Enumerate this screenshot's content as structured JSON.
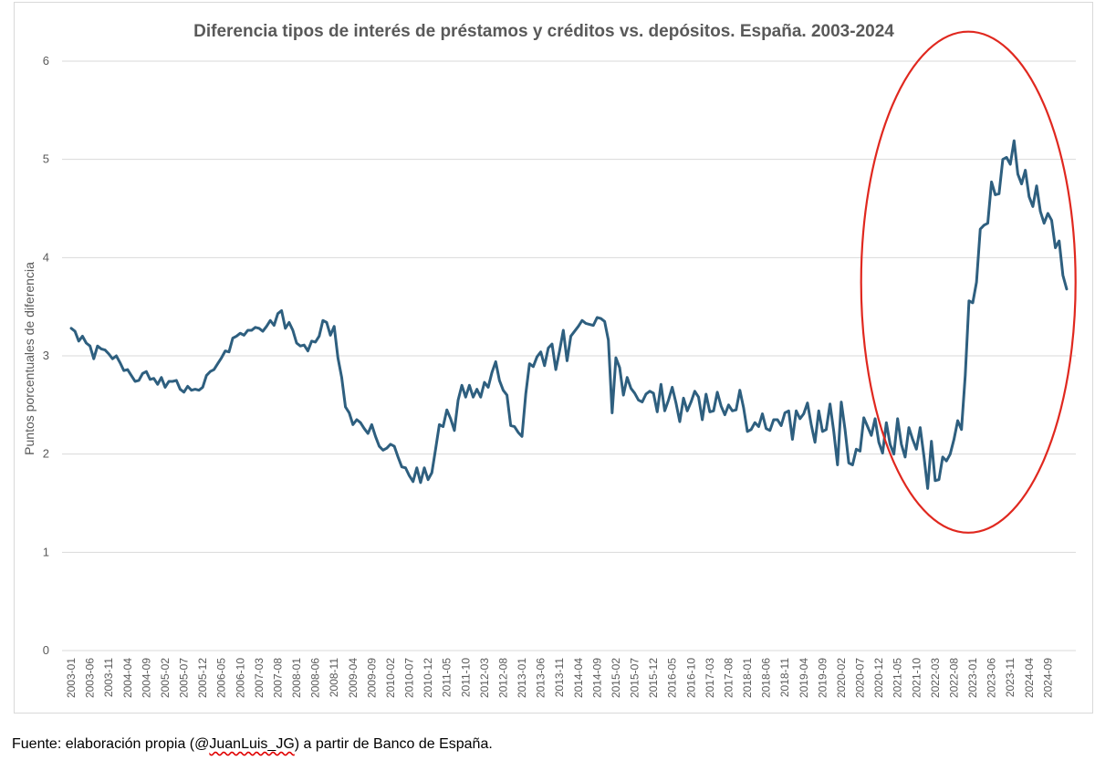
{
  "chart_data": {
    "type": "line",
    "title": "Diferencia tipos de interés de préstamos y créditos vs. depósitos. España. 2003-2024",
    "xlabel": "",
    "ylabel": "Puntos porcentuales de diferencia",
    "ylim": [
      0,
      6
    ],
    "yticks": [
      "0",
      "1",
      "2",
      "3",
      "4",
      "5",
      "6"
    ],
    "grid": true,
    "legend": "none",
    "x_tick_labels": [
      "2003-01",
      "2003-06",
      "2003-11",
      "2004-04",
      "2004-09",
      "2005-02",
      "2005-07",
      "2005-12",
      "2006-05",
      "2006-10",
      "2007-03",
      "2007-08",
      "2008-01",
      "2008-06",
      "2008-11",
      "2009-04",
      "2009-09",
      "2010-02",
      "2010-07",
      "2010-12",
      "2011-05",
      "2011-10",
      "2012-03",
      "2012-08",
      "2013-01",
      "2013-06",
      "2013-11",
      "2014-04",
      "2014-09",
      "2015-02",
      "2015-07",
      "2015-12",
      "2016-05",
      "2016-10",
      "2017-03",
      "2017-08",
      "2018-01",
      "2018-06",
      "2018-11",
      "2019-04",
      "2019-09",
      "2020-02",
      "2020-07",
      "2020-12",
      "2021-05",
      "2021-10",
      "2022-03",
      "2022-08",
      "2023-01",
      "2023-06",
      "2023-11",
      "2024-04",
      "2024-09"
    ],
    "series": [
      {
        "color": "#2e5f7f",
        "start": "2003-01",
        "frequency": "monthly",
        "values": [
          3.28,
          3.25,
          3.15,
          3.2,
          3.13,
          3.1,
          2.97,
          3.1,
          3.07,
          3.06,
          3.02,
          2.97,
          3.0,
          2.93,
          2.85,
          2.86,
          2.8,
          2.74,
          2.75,
          2.82,
          2.84,
          2.76,
          2.77,
          2.71,
          2.78,
          2.68,
          2.74,
          2.74,
          2.75,
          2.66,
          2.63,
          2.69,
          2.65,
          2.66,
          2.65,
          2.68,
          2.8,
          2.84,
          2.86,
          2.92,
          2.98,
          3.05,
          3.04,
          3.18,
          3.2,
          3.23,
          3.21,
          3.26,
          3.26,
          3.29,
          3.28,
          3.25,
          3.3,
          3.36,
          3.31,
          3.43,
          3.46,
          3.28,
          3.34,
          3.26,
          3.13,
          3.1,
          3.11,
          3.05,
          3.15,
          3.14,
          3.2,
          3.36,
          3.34,
          3.21,
          3.3,
          2.98,
          2.78,
          2.48,
          2.42,
          2.3,
          2.35,
          2.32,
          2.26,
          2.21,
          2.3,
          2.18,
          2.08,
          2.04,
          2.06,
          2.1,
          2.08,
          1.97,
          1.87,
          1.86,
          1.78,
          1.72,
          1.86,
          1.71,
          1.86,
          1.74,
          1.81,
          2.05,
          2.3,
          2.28,
          2.45,
          2.36,
          2.24,
          2.55,
          2.7,
          2.58,
          2.7,
          2.58,
          2.66,
          2.58,
          2.73,
          2.68,
          2.83,
          2.94,
          2.75,
          2.65,
          2.6,
          2.29,
          2.28,
          2.22,
          2.18,
          2.61,
          2.92,
          2.89,
          2.99,
          3.04,
          2.9,
          3.08,
          3.12,
          2.86,
          3.05,
          3.26,
          2.95,
          3.2,
          3.25,
          3.3,
          3.36,
          3.33,
          3.32,
          3.31,
          3.39,
          3.38,
          3.35,
          3.16,
          2.42,
          2.98,
          2.88,
          2.6,
          2.78,
          2.67,
          2.62,
          2.55,
          2.53,
          2.61,
          2.64,
          2.62,
          2.43,
          2.71,
          2.44,
          2.55,
          2.68,
          2.52,
          2.33,
          2.57,
          2.44,
          2.53,
          2.64,
          2.58,
          2.35,
          2.61,
          2.43,
          2.44,
          2.63,
          2.49,
          2.4,
          2.5,
          2.44,
          2.45,
          2.65,
          2.47,
          2.23,
          2.25,
          2.32,
          2.28,
          2.41,
          2.26,
          2.24,
          2.35,
          2.35,
          2.29,
          2.42,
          2.44,
          2.15,
          2.44,
          2.36,
          2.41,
          2.52,
          2.3,
          2.12,
          2.44,
          2.23,
          2.25,
          2.51,
          2.23,
          1.89,
          2.53,
          2.25,
          1.91,
          1.89,
          2.05,
          2.03,
          2.37,
          2.28,
          2.19,
          2.36,
          2.12,
          2.01,
          2.32,
          2.1,
          2.0,
          2.36,
          2.1,
          1.97,
          2.27,
          2.15,
          2.05,
          2.27,
          1.98,
          1.65,
          2.13,
          1.73,
          1.74,
          1.97,
          1.93,
          2.0,
          2.15,
          2.34,
          2.25,
          2.8,
          3.56,
          3.54,
          3.75,
          4.29,
          4.33,
          4.35,
          4.77,
          4.64,
          4.65,
          5.0,
          5.02,
          4.95,
          5.19,
          4.85,
          4.75,
          4.89,
          4.62,
          4.52,
          4.73,
          4.47,
          4.35,
          4.45,
          4.38,
          4.1,
          4.17,
          3.82,
          3.68
        ]
      }
    ],
    "annotations": [
      {
        "type": "ellipse",
        "color": "#e0281f",
        "highlight_from": "2021-05",
        "highlight_to": "2024-12"
      }
    ]
  },
  "footer": {
    "before": "Fuente: elaboración propia (@",
    "underlined": "JuanLuis_JG",
    "after": ") a partir de Banco de España."
  }
}
